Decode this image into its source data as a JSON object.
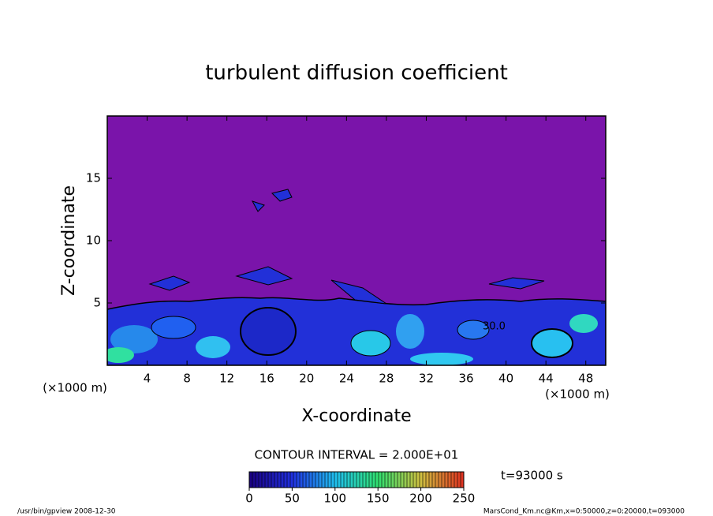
{
  "chart_data": {
    "type": "contour",
    "title": "turbulent diffusion coefficient",
    "xlabel": "X-coordinate",
    "ylabel": "Z-coordinate",
    "xunit": "(×1000 m)",
    "yunit": "(×1000 m)",
    "xlim": [
      0,
      50
    ],
    "ylim": [
      0,
      20
    ],
    "xticks": [
      4,
      8,
      12,
      16,
      20,
      24,
      28,
      32,
      36,
      40,
      44,
      48
    ],
    "yticks": [
      5,
      10,
      15
    ],
    "contour_label": "30.0",
    "contour_interval": "CONTOUR INTERVAL = 2.000E+01",
    "time_label": "t=93000 s",
    "colorbar": {
      "lim": [
        0,
        250
      ],
      "ticks": [
        0,
        50,
        100,
        150,
        200,
        250
      ]
    },
    "footer_left": "/usr/bin/gpview   2008-12-30",
    "footer_right": "MarsCond_Km.nc@Km,x=0:50000,z=0:20000,t=093000"
  }
}
